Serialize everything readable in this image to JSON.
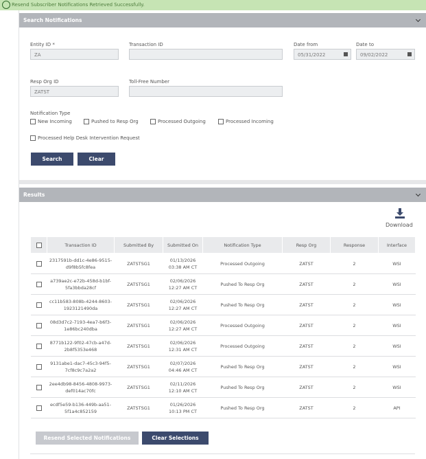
{
  "banner": {
    "message": "Resend Subscriber Notifications Retrieved Successfully."
  },
  "search_panel": {
    "title": "Search Notifications",
    "fields": [
      {
        "label": "Entity ID *",
        "value": "ZA"
      },
      {
        "label": "Transaction ID"
      },
      {
        "label": "Date from",
        "value": "05/31/2022"
      },
      {
        "label": "Date to",
        "value": "09/02/2022"
      },
      {
        "label": "Resp Org ID",
        "value": "ZATST"
      },
      {
        "label": "Toll-Free Number"
      }
    ],
    "notification_type": {
      "label": "Notification Type",
      "options": [
        "New Incoming",
        "Pushed to Resp Org",
        "Processed Outgoing",
        "Processed Incoming",
        "Processed Help Desk Intervention Request"
      ]
    },
    "buttons": [
      "Search",
      "Clear"
    ]
  },
  "results_panel": {
    "title": "Results",
    "download": "Download",
    "table": {
      "columns": [
        "Transaction ID",
        "Submitted By",
        "Submitted On",
        "Notification Type",
        "Resp Org",
        "Response",
        "Interface"
      ],
      "rows": [
        [
          "2317591b-dd1c-4e86-9515-d9f8b5fc8fea",
          "ZATSTSG1",
          "01/13/2026 03:38 AM CT",
          "Processed Outgoing",
          "ZATST",
          2,
          "WSI"
        ],
        [
          "a739ae2c-e72b-458d-b1bf-5fa3bbda28cf",
          "ZATSTSG1",
          "02/06/2026 12:27 AM CT",
          "Pushed To Resp Org",
          "ZATST",
          2,
          "WSI"
        ],
        [
          "cc11b583-808b-4244-8603-1923121490da",
          "ZATSTSG1",
          "02/06/2026 12:27 AM CT",
          "Pushed To Resp Org",
          "ZATST",
          2,
          "WSI"
        ],
        [
          "08d3d7c2-7193-4ea7-b6f3-1e86bc240dba",
          "ZATSTSG1",
          "02/06/2026 12:27 AM CT",
          "Processed Outgoing",
          "ZATST",
          2,
          "WSI"
        ],
        [
          "8771b122-9f02-47cb-a47d-2b8f5353e468",
          "ZATSTSG1",
          "02/06/2026 12:31 AM CT",
          "Processed Outgoing",
          "ZATST",
          2,
          "WSI"
        ],
        [
          "9131abe1-dac7-45c3-94f5-7cf8c9c7a2a2",
          "ZATSTSG1",
          "02/07/2026 04:46 AM CT",
          "Pushed To Resp Org",
          "ZATST",
          2,
          "WSI"
        ],
        [
          "2ee4db98-8456-4808-9973-def014ac70fc",
          "ZATSTSG1",
          "02/11/2026 12:10 AM CT",
          "Pushed To Resp Org",
          "ZATST",
          2,
          "WSI"
        ],
        [
          "ecdf5e59-b136-449b-aa51-5f1a4c852159",
          "ZATSTSG1",
          "01/26/2026 10:13 PM CT",
          "Pushed To Resp Org",
          "ZATST",
          2,
          "API"
        ]
      ]
    },
    "buttons": [
      "Resend Selected Notifications",
      "Clear Selections"
    ]
  }
}
